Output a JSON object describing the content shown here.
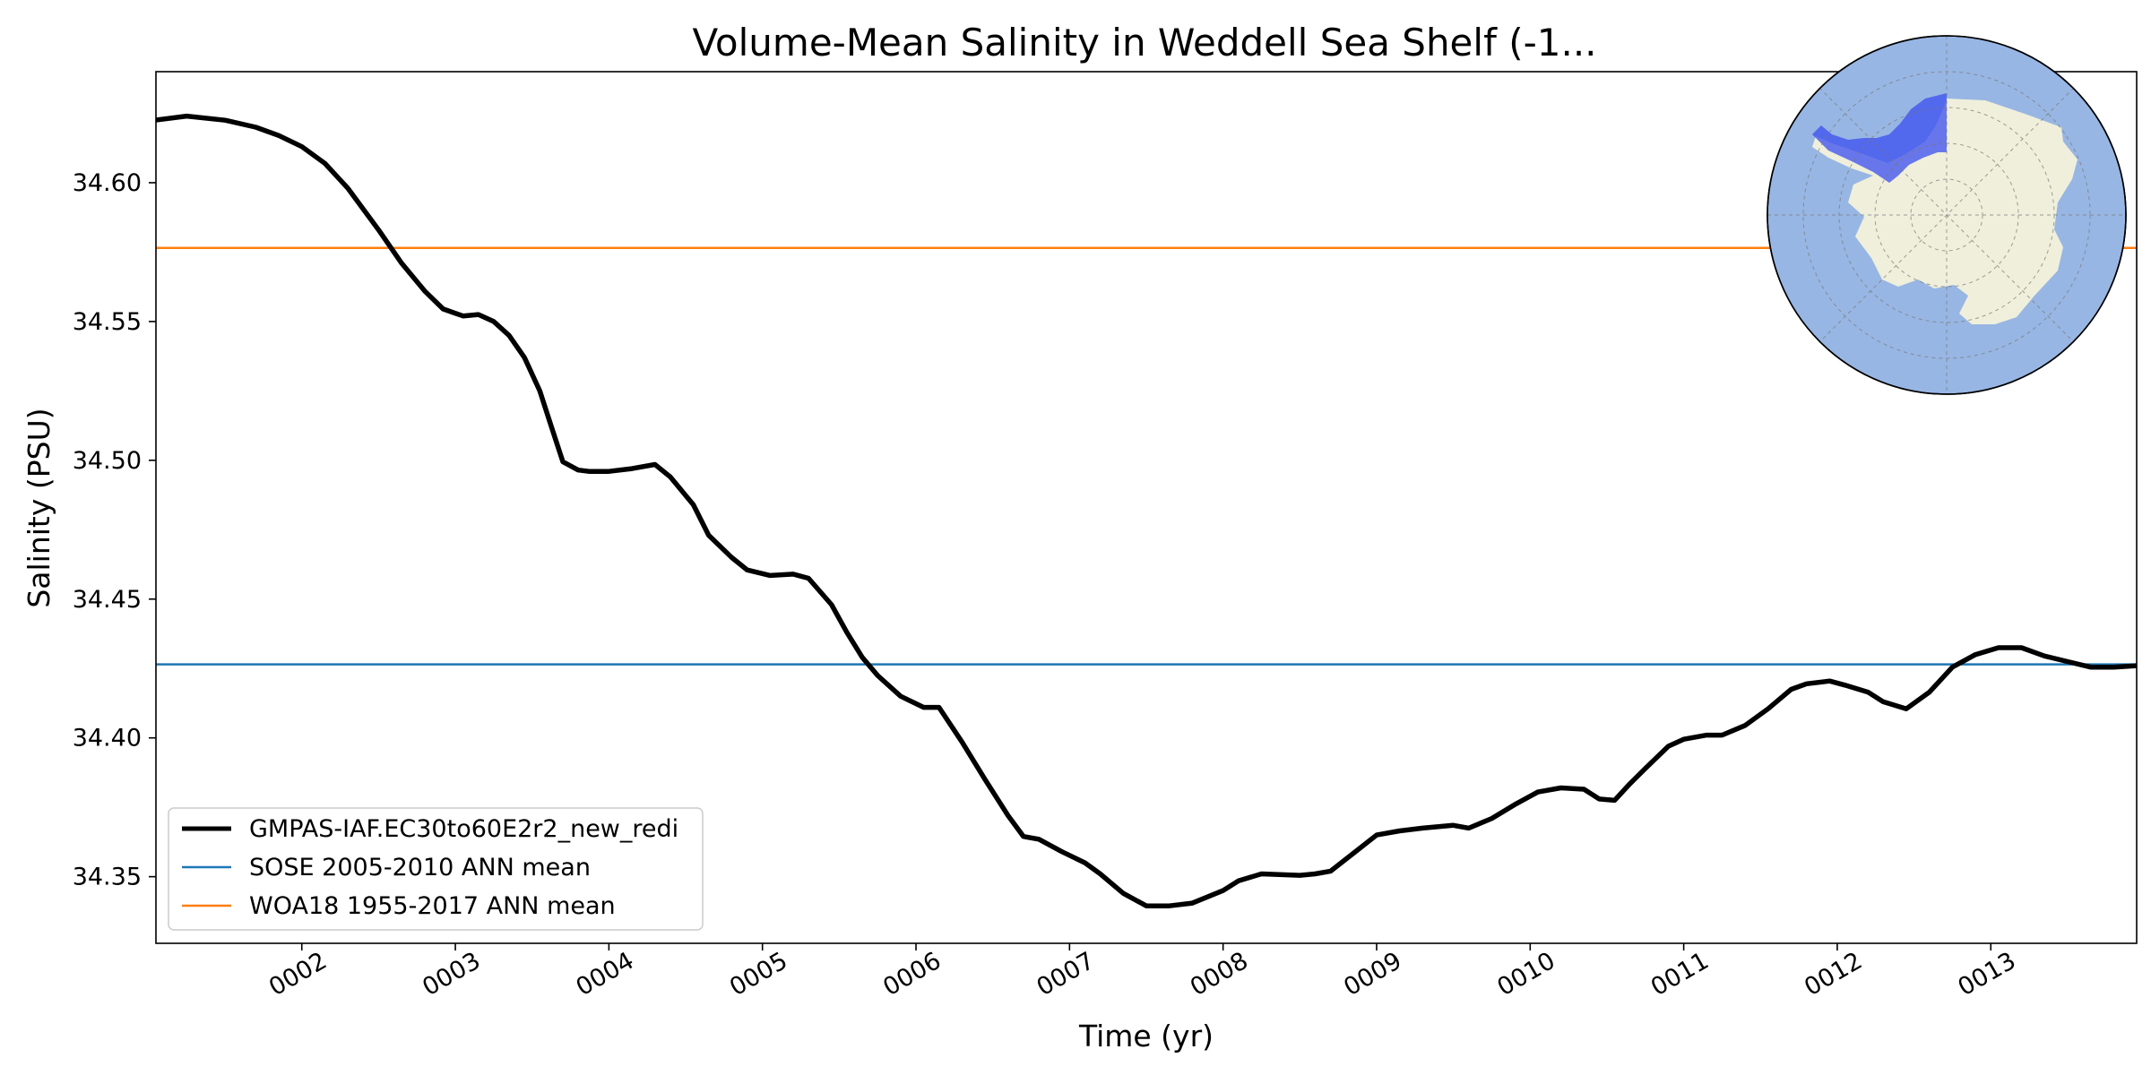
{
  "chart_data": {
    "type": "line",
    "title": "Volume-Mean Salinity in Weddell Sea Shelf (-1...",
    "xlabel": "Time (yr)",
    "ylabel": "Salinity (PSU)",
    "xlim": [
      1.05,
      13.95
    ],
    "ylim": [
      34.326,
      34.64
    ],
    "x_ticks": [
      {
        "value": 2,
        "label": "0002"
      },
      {
        "value": 3,
        "label": "0003"
      },
      {
        "value": 4,
        "label": "0004"
      },
      {
        "value": 5,
        "label": "0005"
      },
      {
        "value": 6,
        "label": "0006"
      },
      {
        "value": 7,
        "label": "0007"
      },
      {
        "value": 8,
        "label": "0008"
      },
      {
        "value": 9,
        "label": "0009"
      },
      {
        "value": 10,
        "label": "0010"
      },
      {
        "value": 11,
        "label": "0011"
      },
      {
        "value": 12,
        "label": "0012"
      },
      {
        "value": 13,
        "label": "0013"
      }
    ],
    "y_ticks": [
      {
        "value": 34.35,
        "label": "34.35"
      },
      {
        "value": 34.4,
        "label": "34.40"
      },
      {
        "value": 34.45,
        "label": "34.45"
      },
      {
        "value": 34.5,
        "label": "34.50"
      },
      {
        "value": 34.55,
        "label": "34.55"
      },
      {
        "value": 34.6,
        "label": "34.60"
      }
    ],
    "grid": false,
    "legend_position": "lower-left",
    "series": [
      {
        "name": "GMPAS-IAF.EC30to60E2r2_new_redi",
        "color": "#000000",
        "style": "line-thick",
        "x": [
          1.04,
          1.25,
          1.5,
          1.7,
          1.85,
          2.0,
          2.15,
          2.3,
          2.5,
          2.65,
          2.8,
          2.92,
          3.05,
          3.15,
          3.25,
          3.35,
          3.45,
          3.55,
          3.62,
          3.7,
          3.8,
          3.87,
          4.0,
          4.15,
          4.3,
          4.4,
          4.55,
          4.65,
          4.8,
          4.9,
          5.05,
          5.2,
          5.3,
          5.45,
          5.55,
          5.65,
          5.75,
          5.9,
          6.05,
          6.15,
          6.3,
          6.45,
          6.6,
          6.7,
          6.8,
          6.95,
          7.1,
          7.2,
          7.35,
          7.5,
          7.65,
          7.8,
          8.0,
          8.1,
          8.25,
          8.5,
          8.6,
          8.7,
          8.85,
          9.0,
          9.15,
          9.3,
          9.5,
          9.6,
          9.75,
          9.9,
          10.05,
          10.2,
          10.35,
          10.45,
          10.55,
          10.65,
          10.75,
          10.9,
          11.0,
          11.15,
          11.25,
          11.4,
          11.55,
          11.7,
          11.8,
          11.95,
          12.05,
          12.2,
          12.3,
          12.45,
          12.6,
          12.75,
          12.9,
          13.05,
          13.2,
          13.35,
          13.5,
          13.65,
          13.8,
          13.95
        ],
        "y": [
          34.6225,
          34.624,
          34.6225,
          34.62,
          34.617,
          34.613,
          34.607,
          34.598,
          34.583,
          34.571,
          34.561,
          34.5545,
          34.552,
          34.5525,
          34.55,
          34.545,
          34.537,
          34.525,
          34.513,
          34.4995,
          34.4965,
          34.496,
          34.496,
          34.497,
          34.4985,
          34.494,
          34.484,
          34.473,
          34.465,
          34.4605,
          34.4585,
          34.459,
          34.4575,
          34.448,
          34.438,
          34.429,
          34.4225,
          34.415,
          34.411,
          34.411,
          34.3985,
          34.385,
          34.372,
          34.3645,
          34.3635,
          34.359,
          34.355,
          34.351,
          34.344,
          34.3395,
          34.3395,
          34.3405,
          34.345,
          34.3485,
          34.351,
          34.3505,
          34.351,
          34.352,
          34.3585,
          34.365,
          34.3665,
          34.3675,
          34.3685,
          34.3675,
          34.371,
          34.376,
          34.3805,
          34.382,
          34.3815,
          34.378,
          34.3775,
          34.3835,
          34.389,
          34.397,
          34.3995,
          34.401,
          34.401,
          34.4045,
          34.4105,
          34.4175,
          34.4195,
          34.4205,
          34.419,
          34.4165,
          34.413,
          34.4105,
          34.4165,
          34.4255,
          34.43,
          34.4325,
          34.4325,
          34.4295,
          34.4275,
          34.4255,
          34.4255,
          34.426
        ]
      },
      {
        "name": "SOSE 2005-2010 ANN mean",
        "color": "#1f77b4",
        "style": "hline",
        "value": 34.4265
      },
      {
        "name": "WOA18 1955-2017 ANN mean",
        "color": "#ff7f0e",
        "style": "hline",
        "value": 34.5765
      }
    ],
    "inset_map": {
      "description_icon": "antarctica-polar-map-icon",
      "ocean_color": "#98b6e3",
      "land_color": "#efefdb",
      "region_color": "#3b4ef0"
    }
  }
}
